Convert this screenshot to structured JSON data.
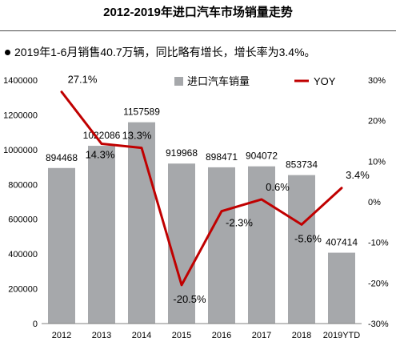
{
  "title": "2012-2019年进口汽车市场销量走势",
  "note": "2019年1-6月销售40.7万辆，同比略有增长，增长率为3.4%。",
  "colors": {
    "bar": "#a6a8ab",
    "line": "#c00000",
    "text": "#000000",
    "axis": "#808080"
  },
  "chart_data": {
    "type": "bar",
    "categories": [
      "2012",
      "2013",
      "2014",
      "2015",
      "2016",
      "2017",
      "2018",
      "2019YTD"
    ],
    "series": [
      {
        "name": "进口汽车销量",
        "type": "bar",
        "axis": "left",
        "values": [
          894468,
          1022086,
          1157589,
          919968,
          898471,
          904072,
          853734,
          407414
        ],
        "labels": [
          "894468",
          "1022086",
          "1157589",
          "919968",
          "898471",
          "904072",
          "853734",
          "407414"
        ]
      },
      {
        "name": "YOY",
        "type": "line",
        "axis": "right",
        "values": [
          27.1,
          14.3,
          13.3,
          -20.5,
          -2.3,
          0.6,
          -5.6,
          3.4
        ],
        "labels": [
          "27.1%",
          "14.3%",
          "13.3%",
          "-20.5%",
          "-2.3%",
          "0.6%",
          "-5.6%",
          "3.4%"
        ]
      }
    ],
    "y_left": {
      "range": [
        0,
        1400000
      ],
      "ticks": [
        "0",
        "200000",
        "400000",
        "600000",
        "800000",
        "1000000",
        "1200000",
        "1400000"
      ]
    },
    "y_right": {
      "range": [
        -30,
        30
      ],
      "ticks": [
        "-30%",
        "-20%",
        "-10%",
        "0%",
        "10%",
        "20%",
        "30%"
      ]
    },
    "grid": false,
    "legend": {
      "position": "top",
      "items": [
        "进口汽车销量",
        "YOY"
      ]
    }
  }
}
